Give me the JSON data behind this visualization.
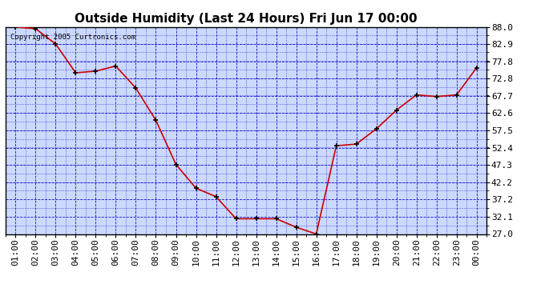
{
  "title": "Outside Humidity (Last 24 Hours) Fri Jun 17 00:00",
  "x_labels": [
    "01:00",
    "02:00",
    "03:00",
    "04:00",
    "05:00",
    "06:00",
    "07:00",
    "08:00",
    "09:00",
    "10:00",
    "11:00",
    "12:00",
    "13:00",
    "14:00",
    "15:00",
    "16:00",
    "17:00",
    "18:00",
    "19:00",
    "20:00",
    "21:00",
    "22:00",
    "23:00",
    "00:00"
  ],
  "x_values": [
    1,
    2,
    3,
    4,
    5,
    6,
    7,
    8,
    9,
    10,
    11,
    12,
    13,
    14,
    15,
    16,
    17,
    18,
    19,
    20,
    21,
    22,
    23,
    24
  ],
  "y_values": [
    88.0,
    87.5,
    83.0,
    74.5,
    75.0,
    76.5,
    70.0,
    60.5,
    47.5,
    40.5,
    38.0,
    31.5,
    31.5,
    31.5,
    29.0,
    27.0,
    53.0,
    53.5,
    58.0,
    63.5,
    68.0,
    67.5,
    68.0,
    76.0
  ],
  "y_ticks": [
    27.0,
    32.1,
    37.2,
    42.2,
    47.3,
    52.4,
    57.5,
    62.6,
    67.7,
    72.8,
    77.8,
    82.9,
    88.0
  ],
  "ylim_min": 27.0,
  "ylim_max": 88.0,
  "line_color": "#cc0000",
  "marker_color": "#000000",
  "bg_color": "#ccd9ff",
  "grid_color": "#0000bb",
  "border_color": "#000000",
  "title_fontsize": 11,
  "tick_fontsize": 8,
  "copyright_text": "Copyright 2005 Curtronics.com"
}
